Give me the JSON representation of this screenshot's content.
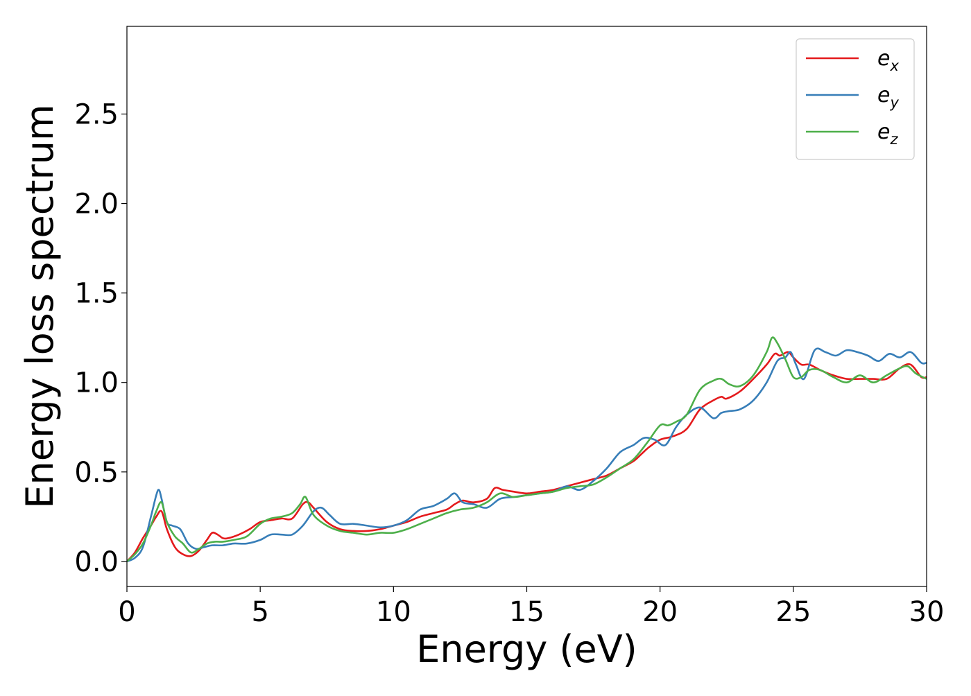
{
  "chart_data": {
    "type": "line",
    "title": "",
    "xlabel": "Energy (eV)",
    "ylabel": "Energy loss spectrum",
    "xlim": [
      0,
      30
    ],
    "ylim": [
      -0.14,
      2.99
    ],
    "xticks": [
      "0",
      "5",
      "10",
      "15",
      "20",
      "25",
      "30"
    ],
    "yticks": [
      "0.0",
      "0.5",
      "1.0",
      "1.5",
      "2.0",
      "2.5"
    ],
    "grid": false,
    "legend_position": "top-right",
    "series": [
      {
        "name": "e_x",
        "label_main": "e",
        "label_sub": "x",
        "color": "#e41a1c",
        "x": [
          0,
          0.3,
          0.6,
          0.9,
          1.1,
          1.3,
          1.5,
          1.8,
          2.1,
          2.4,
          2.7,
          3.0,
          3.2,
          3.4,
          3.6,
          3.8,
          4.2,
          4.6,
          5.0,
          5.4,
          5.8,
          6.2,
          6.6,
          6.8,
          7.0,
          7.5,
          8.0,
          8.5,
          9.0,
          9.5,
          10.0,
          10.5,
          11.0,
          11.5,
          12.0,
          12.3,
          12.6,
          13.0,
          13.5,
          13.8,
          14.1,
          14.5,
          15.0,
          15.5,
          16.0,
          16.5,
          17.0,
          17.5,
          18.0,
          18.5,
          19.0,
          19.3,
          19.6,
          20.0,
          20.5,
          21.0,
          21.5,
          22.0,
          22.3,
          22.5,
          23.0,
          23.5,
          24.0,
          24.3,
          24.5,
          24.8,
          25.0,
          25.3,
          25.6,
          26.0,
          26.5,
          27.0,
          27.5,
          28.0,
          28.5,
          29.0,
          29.4,
          29.8,
          30.0
        ],
        "y": [
          0.0,
          0.05,
          0.13,
          0.2,
          0.25,
          0.28,
          0.18,
          0.08,
          0.04,
          0.03,
          0.06,
          0.12,
          0.16,
          0.15,
          0.13,
          0.13,
          0.15,
          0.18,
          0.22,
          0.23,
          0.24,
          0.24,
          0.32,
          0.33,
          0.3,
          0.22,
          0.18,
          0.17,
          0.17,
          0.18,
          0.2,
          0.22,
          0.25,
          0.27,
          0.29,
          0.32,
          0.34,
          0.33,
          0.35,
          0.41,
          0.4,
          0.39,
          0.38,
          0.39,
          0.4,
          0.42,
          0.44,
          0.46,
          0.48,
          0.52,
          0.56,
          0.6,
          0.64,
          0.68,
          0.7,
          0.74,
          0.85,
          0.9,
          0.92,
          0.91,
          0.95,
          1.02,
          1.1,
          1.16,
          1.15,
          1.17,
          1.14,
          1.1,
          1.1,
          1.07,
          1.04,
          1.02,
          1.02,
          1.02,
          1.02,
          1.08,
          1.1,
          1.03,
          1.03
        ]
      },
      {
        "name": "e_y",
        "label_main": "e",
        "label_sub": "y",
        "color": "#377eb8",
        "x": [
          0,
          0.3,
          0.6,
          0.9,
          1.1,
          1.2,
          1.3,
          1.5,
          1.7,
          2.0,
          2.3,
          2.6,
          2.9,
          3.2,
          3.6,
          4.0,
          4.5,
          5.0,
          5.4,
          5.8,
          6.2,
          6.6,
          7.0,
          7.3,
          7.6,
          8.0,
          8.5,
          9.0,
          9.5,
          10.0,
          10.5,
          11.0,
          11.5,
          12.0,
          12.3,
          12.6,
          13.0,
          13.5,
          14.0,
          14.5,
          15.0,
          15.5,
          16.0,
          16.5,
          17.0,
          17.5,
          18.0,
          18.5,
          19.0,
          19.4,
          19.8,
          20.2,
          20.6,
          21.0,
          21.5,
          22.0,
          22.3,
          22.6,
          23.0,
          23.5,
          24.0,
          24.4,
          24.7,
          24.9,
          25.1,
          25.4,
          25.8,
          26.2,
          26.6,
          27.0,
          27.4,
          27.8,
          28.2,
          28.6,
          29.0,
          29.4,
          29.8,
          30.0
        ],
        "y": [
          0.0,
          0.02,
          0.08,
          0.25,
          0.37,
          0.4,
          0.35,
          0.22,
          0.2,
          0.18,
          0.1,
          0.07,
          0.08,
          0.09,
          0.09,
          0.1,
          0.1,
          0.12,
          0.15,
          0.15,
          0.15,
          0.2,
          0.28,
          0.3,
          0.26,
          0.21,
          0.21,
          0.2,
          0.19,
          0.2,
          0.23,
          0.29,
          0.31,
          0.35,
          0.38,
          0.33,
          0.32,
          0.3,
          0.35,
          0.36,
          0.37,
          0.38,
          0.39,
          0.42,
          0.4,
          0.45,
          0.52,
          0.61,
          0.65,
          0.69,
          0.68,
          0.65,
          0.75,
          0.82,
          0.86,
          0.8,
          0.83,
          0.84,
          0.85,
          0.9,
          1.0,
          1.12,
          1.14,
          1.17,
          1.1,
          1.02,
          1.18,
          1.17,
          1.15,
          1.18,
          1.17,
          1.15,
          1.12,
          1.16,
          1.14,
          1.17,
          1.11,
          1.11
        ]
      },
      {
        "name": "e_z",
        "label_main": "e",
        "label_sub": "z",
        "color": "#4daf4a",
        "x": [
          0,
          0.3,
          0.6,
          0.9,
          1.1,
          1.3,
          1.5,
          1.8,
          2.1,
          2.4,
          2.7,
          3.0,
          3.3,
          3.6,
          4.0,
          4.5,
          5.0,
          5.4,
          5.8,
          6.2,
          6.5,
          6.7,
          7.0,
          7.5,
          8.0,
          8.5,
          9.0,
          9.5,
          10.0,
          10.5,
          11.0,
          11.5,
          12.0,
          12.5,
          13.0,
          13.5,
          14.0,
          14.5,
          15.0,
          15.5,
          16.0,
          16.5,
          17.0,
          17.5,
          18.0,
          18.5,
          19.0,
          19.5,
          20.0,
          20.3,
          20.6,
          21.0,
          21.5,
          22.0,
          22.3,
          22.6,
          23.0,
          23.5,
          24.0,
          24.2,
          24.4,
          24.7,
          25.0,
          25.3,
          25.6,
          26.0,
          26.5,
          27.0,
          27.5,
          28.0,
          28.5,
          29.0,
          29.3,
          29.6,
          30.0
        ],
        "y": [
          0.0,
          0.04,
          0.1,
          0.2,
          0.28,
          0.33,
          0.22,
          0.14,
          0.1,
          0.05,
          0.07,
          0.1,
          0.11,
          0.11,
          0.12,
          0.14,
          0.21,
          0.24,
          0.25,
          0.27,
          0.32,
          0.36,
          0.26,
          0.2,
          0.17,
          0.16,
          0.15,
          0.16,
          0.16,
          0.18,
          0.21,
          0.24,
          0.27,
          0.29,
          0.3,
          0.33,
          0.38,
          0.36,
          0.37,
          0.38,
          0.39,
          0.41,
          0.42,
          0.43,
          0.47,
          0.52,
          0.57,
          0.66,
          0.76,
          0.76,
          0.78,
          0.82,
          0.96,
          1.01,
          1.02,
          0.99,
          0.98,
          1.04,
          1.17,
          1.25,
          1.22,
          1.13,
          1.03,
          1.03,
          1.07,
          1.07,
          1.03,
          1.0,
          1.04,
          1.0,
          1.04,
          1.08,
          1.09,
          1.05,
          1.02
        ]
      }
    ]
  }
}
